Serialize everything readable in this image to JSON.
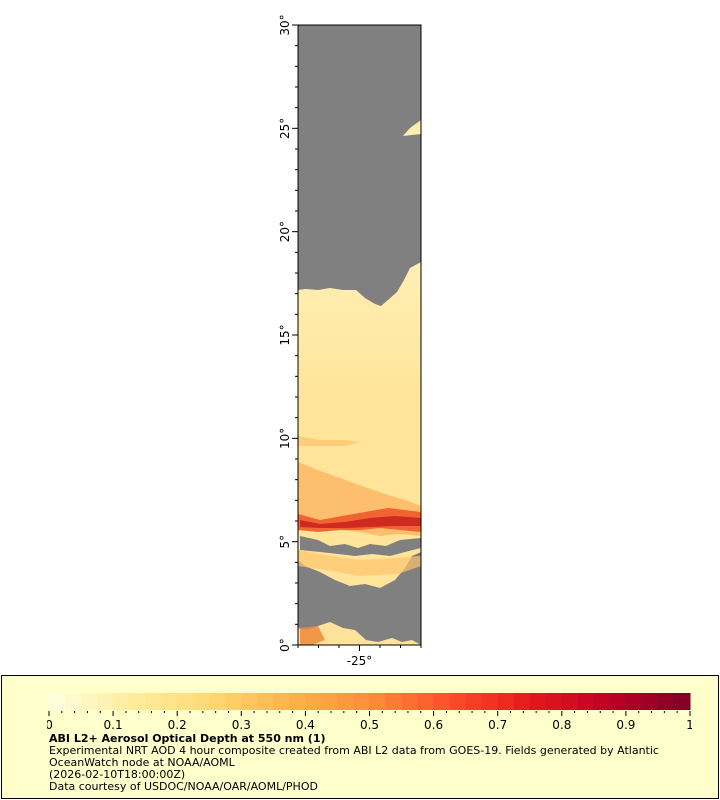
{
  "map": {
    "y_axis_labels": [
      "0°",
      "5°",
      "10°",
      "15°",
      "20°",
      "25°",
      "30°"
    ],
    "y_axis_values": [
      0,
      5,
      10,
      15,
      20,
      25,
      30
    ],
    "x_axis_labels": [
      "-25°"
    ],
    "x_axis_values": [
      -25
    ],
    "lat_range": [
      0,
      30
    ],
    "lon_range": [
      -28,
      -22
    ],
    "no_data_color": "#808080"
  },
  "colorbar": {
    "tick_labels": [
      "0",
      "0.1",
      "0.2",
      "0.3",
      "0.4",
      "0.5",
      "0.6",
      "0.7",
      "0.8",
      "0.9",
      "1"
    ],
    "tick_values": [
      0,
      0.1,
      0.2,
      0.3,
      0.4,
      0.5,
      0.6,
      0.7,
      0.8,
      0.9,
      1.0
    ],
    "range": [
      0,
      1
    ],
    "colors": [
      "#ffffe0",
      "#ffeda0",
      "#fed976",
      "#feb24c",
      "#fd8d3c",
      "#fc4e2a",
      "#e31a1c",
      "#bd0026",
      "#800026"
    ]
  },
  "caption": {
    "title": "ABI L2+ Aerosol Optical Depth at 550 nm (1)",
    "line1": "Experimental NRT AOD 4 hour composite created from ABI L2 data from GOES-19. Fields generated by Atlantic",
    "line2": "OceanWatch node at NOAA/AOML",
    "line3": "(2026-02-10T18:00:00Z)",
    "line4": "Data courtesy of USDOC/NOAA/OAR/AOML/PHOD"
  }
}
